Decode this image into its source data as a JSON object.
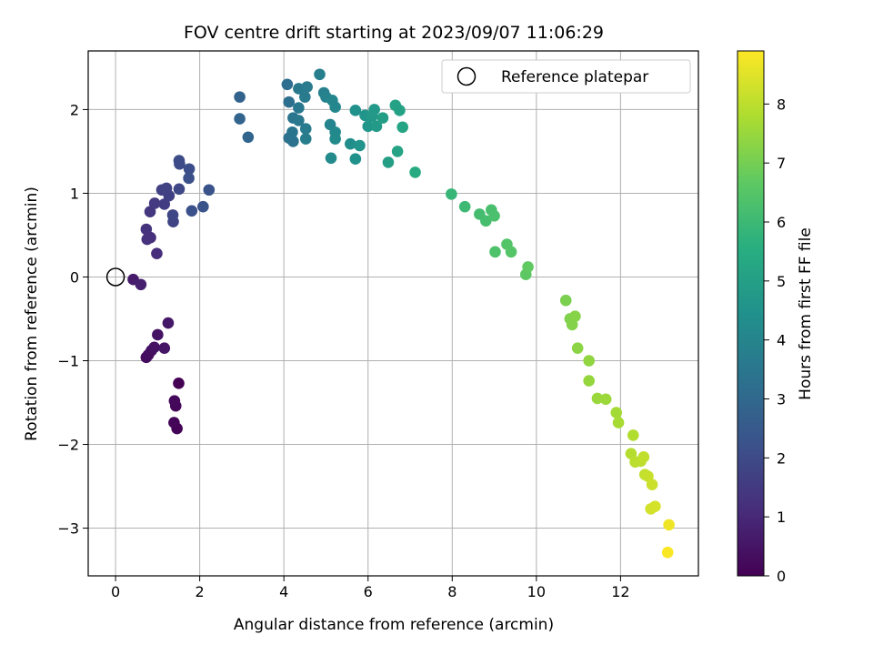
{
  "chart_data": {
    "type": "scatter",
    "title": "FOV centre drift starting at 2023/09/07 11:06:29",
    "xlabel": "Angular distance from reference (arcmin)",
    "ylabel": "Rotation from reference (arcmin)",
    "xlim": [
      -0.65,
      13.85
    ],
    "ylim": [
      -3.57,
      2.7
    ],
    "xticks": [
      0,
      2,
      4,
      6,
      8,
      10,
      12
    ],
    "yticks": [
      -3,
      -2,
      -1,
      0,
      1,
      2
    ],
    "grid": true,
    "legend": {
      "position": "top-right",
      "entries": [
        "Reference platepar"
      ]
    },
    "reference_point": {
      "x": 0,
      "y": 0,
      "label": "Reference platepar"
    },
    "colorbar": {
      "label": "Hours from first FF file",
      "colormap": "viridis",
      "range": [
        0,
        8.9
      ],
      "ticks": [
        0,
        1,
        2,
        3,
        4,
        5,
        6,
        7,
        8
      ]
    },
    "points": [
      {
        "x": 1.5,
        "y": -1.27,
        "h": 0.0
      },
      {
        "x": 1.46,
        "y": -1.81,
        "h": 0.05
      },
      {
        "x": 1.39,
        "y": -1.74,
        "h": 0.1
      },
      {
        "x": 1.43,
        "y": -1.54,
        "h": 0.15
      },
      {
        "x": 1.4,
        "y": -1.48,
        "h": 0.2
      },
      {
        "x": 0.73,
        "y": -0.96,
        "h": 0.25
      },
      {
        "x": 0.78,
        "y": -0.93,
        "h": 0.3
      },
      {
        "x": 0.85,
        "y": -0.88,
        "h": 0.35
      },
      {
        "x": 0.92,
        "y": -0.84,
        "h": 0.4
      },
      {
        "x": 1.0,
        "y": -0.69,
        "h": 0.45
      },
      {
        "x": 1.16,
        "y": -0.85,
        "h": 0.5
      },
      {
        "x": 1.25,
        "y": -0.55,
        "h": 0.55
      },
      {
        "x": 0.42,
        "y": -0.03,
        "h": 0.65
      },
      {
        "x": 0.6,
        "y": -0.09,
        "h": 0.75
      },
      {
        "x": 0.98,
        "y": 0.28,
        "h": 1.1
      },
      {
        "x": 0.83,
        "y": 0.47,
        "h": 1.2
      },
      {
        "x": 0.75,
        "y": 0.45,
        "h": 1.25
      },
      {
        "x": 0.73,
        "y": 0.57,
        "h": 1.3
      },
      {
        "x": 0.82,
        "y": 0.78,
        "h": 1.4
      },
      {
        "x": 0.93,
        "y": 0.88,
        "h": 1.5
      },
      {
        "x": 1.16,
        "y": 0.87,
        "h": 1.6
      },
      {
        "x": 1.27,
        "y": 0.97,
        "h": 1.65
      },
      {
        "x": 1.1,
        "y": 1.04,
        "h": 1.7
      },
      {
        "x": 1.21,
        "y": 1.06,
        "h": 1.75
      },
      {
        "x": 1.37,
        "y": 0.66,
        "h": 1.8
      },
      {
        "x": 1.36,
        "y": 0.74,
        "h": 1.85
      },
      {
        "x": 1.51,
        "y": 1.05,
        "h": 1.9
      },
      {
        "x": 1.51,
        "y": 1.39,
        "h": 2.0
      },
      {
        "x": 1.52,
        "y": 1.35,
        "h": 2.05
      },
      {
        "x": 1.75,
        "y": 1.29,
        "h": 2.1
      },
      {
        "x": 1.74,
        "y": 1.18,
        "h": 2.15
      },
      {
        "x": 1.81,
        "y": 0.79,
        "h": 2.2
      },
      {
        "x": 2.08,
        "y": 0.84,
        "h": 2.25
      },
      {
        "x": 2.22,
        "y": 1.04,
        "h": 2.3
      },
      {
        "x": 2.95,
        "y": 2.15,
        "h": 2.8
      },
      {
        "x": 2.95,
        "y": 1.89,
        "h": 2.85
      },
      {
        "x": 3.15,
        "y": 1.67,
        "h": 2.9
      },
      {
        "x": 4.08,
        "y": 2.3,
        "h": 3.2
      },
      {
        "x": 4.12,
        "y": 2.09,
        "h": 3.25
      },
      {
        "x": 4.12,
        "y": 1.66,
        "h": 3.3
      },
      {
        "x": 4.22,
        "y": 1.62,
        "h": 3.35
      },
      {
        "x": 4.2,
        "y": 1.73,
        "h": 3.4
      },
      {
        "x": 4.22,
        "y": 1.9,
        "h": 3.45
      },
      {
        "x": 4.35,
        "y": 1.87,
        "h": 3.5
      },
      {
        "x": 4.35,
        "y": 2.02,
        "h": 3.55
      },
      {
        "x": 4.35,
        "y": 2.25,
        "h": 3.6
      },
      {
        "x": 4.5,
        "y": 2.15,
        "h": 3.62
      },
      {
        "x": 4.55,
        "y": 2.27,
        "h": 3.65
      },
      {
        "x": 4.52,
        "y": 1.77,
        "h": 3.7
      },
      {
        "x": 4.52,
        "y": 1.65,
        "h": 3.75
      },
      {
        "x": 4.85,
        "y": 2.42,
        "h": 3.8
      },
      {
        "x": 4.95,
        "y": 2.2,
        "h": 3.85
      },
      {
        "x": 5.0,
        "y": 2.15,
        "h": 3.9
      },
      {
        "x": 5.1,
        "y": 1.82,
        "h": 4.0
      },
      {
        "x": 5.15,
        "y": 2.11,
        "h": 4.05
      },
      {
        "x": 5.22,
        "y": 2.03,
        "h": 4.1
      },
      {
        "x": 5.22,
        "y": 1.73,
        "h": 4.15
      },
      {
        "x": 5.22,
        "y": 1.65,
        "h": 4.2
      },
      {
        "x": 5.12,
        "y": 1.42,
        "h": 4.25
      },
      {
        "x": 5.58,
        "y": 1.59,
        "h": 4.35
      },
      {
        "x": 5.7,
        "y": 1.41,
        "h": 4.45
      },
      {
        "x": 5.7,
        "y": 1.99,
        "h": 4.5
      },
      {
        "x": 5.8,
        "y": 1.57,
        "h": 4.55
      },
      {
        "x": 5.93,
        "y": 1.93,
        "h": 4.6
      },
      {
        "x": 6.0,
        "y": 1.8,
        "h": 4.65
      },
      {
        "x": 6.1,
        "y": 1.92,
        "h": 4.7
      },
      {
        "x": 6.15,
        "y": 2.0,
        "h": 4.75
      },
      {
        "x": 6.2,
        "y": 1.8,
        "h": 4.8
      },
      {
        "x": 6.35,
        "y": 1.9,
        "h": 4.9
      },
      {
        "x": 6.48,
        "y": 1.37,
        "h": 5.0
      },
      {
        "x": 6.65,
        "y": 2.05,
        "h": 5.05
      },
      {
        "x": 6.75,
        "y": 1.99,
        "h": 5.1
      },
      {
        "x": 6.7,
        "y": 1.5,
        "h": 5.15
      },
      {
        "x": 6.82,
        "y": 1.79,
        "h": 5.2
      },
      {
        "x": 7.12,
        "y": 1.25,
        "h": 5.4
      },
      {
        "x": 7.98,
        "y": 0.99,
        "h": 5.9
      },
      {
        "x": 8.3,
        "y": 0.84,
        "h": 6.0
      },
      {
        "x": 8.65,
        "y": 0.75,
        "h": 6.15
      },
      {
        "x": 8.8,
        "y": 0.67,
        "h": 6.2
      },
      {
        "x": 8.93,
        "y": 0.8,
        "h": 6.25
      },
      {
        "x": 9.0,
        "y": 0.73,
        "h": 6.3
      },
      {
        "x": 9.02,
        "y": 0.3,
        "h": 6.35
      },
      {
        "x": 9.3,
        "y": 0.39,
        "h": 6.45
      },
      {
        "x": 9.4,
        "y": 0.3,
        "h": 6.5
      },
      {
        "x": 9.75,
        "y": 0.03,
        "h": 6.65
      },
      {
        "x": 9.8,
        "y": 0.12,
        "h": 6.7
      },
      {
        "x": 10.7,
        "y": -0.28,
        "h": 7.1
      },
      {
        "x": 10.8,
        "y": -0.5,
        "h": 7.15
      },
      {
        "x": 10.85,
        "y": -0.57,
        "h": 7.2
      },
      {
        "x": 10.92,
        "y": -0.47,
        "h": 7.25
      },
      {
        "x": 10.98,
        "y": -0.85,
        "h": 7.3
      },
      {
        "x": 11.25,
        "y": -1.0,
        "h": 7.4
      },
      {
        "x": 11.25,
        "y": -1.24,
        "h": 7.45
      },
      {
        "x": 11.45,
        "y": -1.45,
        "h": 7.5
      },
      {
        "x": 11.65,
        "y": -1.46,
        "h": 7.55
      },
      {
        "x": 11.9,
        "y": -1.62,
        "h": 7.65
      },
      {
        "x": 11.95,
        "y": -1.74,
        "h": 7.7
      },
      {
        "x": 12.3,
        "y": -1.89,
        "h": 7.85
      },
      {
        "x": 12.25,
        "y": -2.11,
        "h": 7.9
      },
      {
        "x": 12.35,
        "y": -2.21,
        "h": 7.95
      },
      {
        "x": 12.48,
        "y": -2.2,
        "h": 8.0
      },
      {
        "x": 12.55,
        "y": -2.15,
        "h": 8.05
      },
      {
        "x": 12.58,
        "y": -2.36,
        "h": 8.1
      },
      {
        "x": 12.65,
        "y": -2.38,
        "h": 8.15
      },
      {
        "x": 12.75,
        "y": -2.48,
        "h": 8.2
      },
      {
        "x": 12.72,
        "y": -2.77,
        "h": 8.3
      },
      {
        "x": 12.82,
        "y": -2.74,
        "h": 8.35
      },
      {
        "x": 13.15,
        "y": -2.96,
        "h": 8.7
      },
      {
        "x": 13.12,
        "y": -3.29,
        "h": 8.85
      }
    ]
  }
}
